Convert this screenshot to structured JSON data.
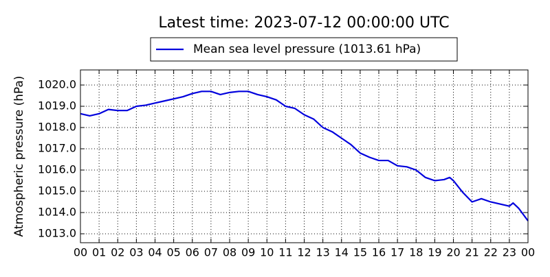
{
  "chart_data": {
    "type": "line",
    "title": "Latest time: 2023-07-12 00:00:00 UTC",
    "ylabel": "Atmospheric pressure (hPa)",
    "grid": true,
    "legend": "top",
    "x": [
      0,
      0.5,
      1,
      1.5,
      2,
      2.5,
      3,
      3.5,
      4,
      4.5,
      5,
      5.5,
      6,
      6.5,
      7,
      7.5,
      8,
      8.5,
      9,
      9.5,
      10,
      10.5,
      11,
      11.5,
      12,
      12.5,
      13,
      13.5,
      14,
      14.5,
      15,
      15.5,
      16,
      16.5,
      17,
      17.5,
      18,
      18.5,
      19,
      19.5,
      19.8,
      20,
      20.5,
      21,
      21.5,
      22,
      22.5,
      23,
      23.2,
      23.5,
      24
    ],
    "series": [
      {
        "name": "Mean sea level pressure (1013.61 hPa)",
        "color": "#0000dd",
        "values": [
          1018.65,
          1018.55,
          1018.65,
          1018.85,
          1018.8,
          1018.8,
          1019.0,
          1019.05,
          1019.15,
          1019.25,
          1019.35,
          1019.45,
          1019.6,
          1019.7,
          1019.7,
          1019.55,
          1019.65,
          1019.7,
          1019.7,
          1019.55,
          1019.45,
          1019.3,
          1019.0,
          1018.9,
          1018.6,
          1018.4,
          1018.0,
          1017.8,
          1017.5,
          1017.2,
          1016.8,
          1016.6,
          1016.45,
          1016.45,
          1016.2,
          1016.15,
          1016.0,
          1015.65,
          1015.5,
          1015.55,
          1015.65,
          1015.5,
          1014.95,
          1014.5,
          1014.65,
          1014.5,
          1014.4,
          1014.3,
          1014.45,
          1014.2,
          1013.61
        ]
      }
    ],
    "xlim": [
      0,
      24
    ],
    "xticks": [
      {
        "value": 0,
        "label": "00"
      },
      {
        "value": 1,
        "label": "01"
      },
      {
        "value": 2,
        "label": "02"
      },
      {
        "value": 3,
        "label": "03"
      },
      {
        "value": 4,
        "label": "04"
      },
      {
        "value": 5,
        "label": "05"
      },
      {
        "value": 6,
        "label": "06"
      },
      {
        "value": 7,
        "label": "07"
      },
      {
        "value": 8,
        "label": "08"
      },
      {
        "value": 9,
        "label": "09"
      },
      {
        "value": 10,
        "label": "10"
      },
      {
        "value": 11,
        "label": "11"
      },
      {
        "value": 12,
        "label": "12"
      },
      {
        "value": 13,
        "label": "13"
      },
      {
        "value": 14,
        "label": "14"
      },
      {
        "value": 15,
        "label": "15"
      },
      {
        "value": 16,
        "label": "16"
      },
      {
        "value": 17,
        "label": "17"
      },
      {
        "value": 18,
        "label": "18"
      },
      {
        "value": 19,
        "label": "19"
      },
      {
        "value": 20,
        "label": "20"
      },
      {
        "value": 21,
        "label": "21"
      },
      {
        "value": 22,
        "label": "22"
      },
      {
        "value": 23,
        "label": "23"
      },
      {
        "value": 24,
        "label": "00"
      }
    ],
    "ylim": [
      1012.58,
      1020.71
    ],
    "yticks": [
      {
        "value": 1013,
        "label": "1013.0"
      },
      {
        "value": 1014,
        "label": "1014.0"
      },
      {
        "value": 1015,
        "label": "1015.0"
      },
      {
        "value": 1016,
        "label": "1016.0"
      },
      {
        "value": 1017,
        "label": "1017.0"
      },
      {
        "value": 1018,
        "label": "1018.0"
      },
      {
        "value": 1019,
        "label": "1019.0"
      },
      {
        "value": 1020,
        "label": "1020.0"
      }
    ]
  }
}
